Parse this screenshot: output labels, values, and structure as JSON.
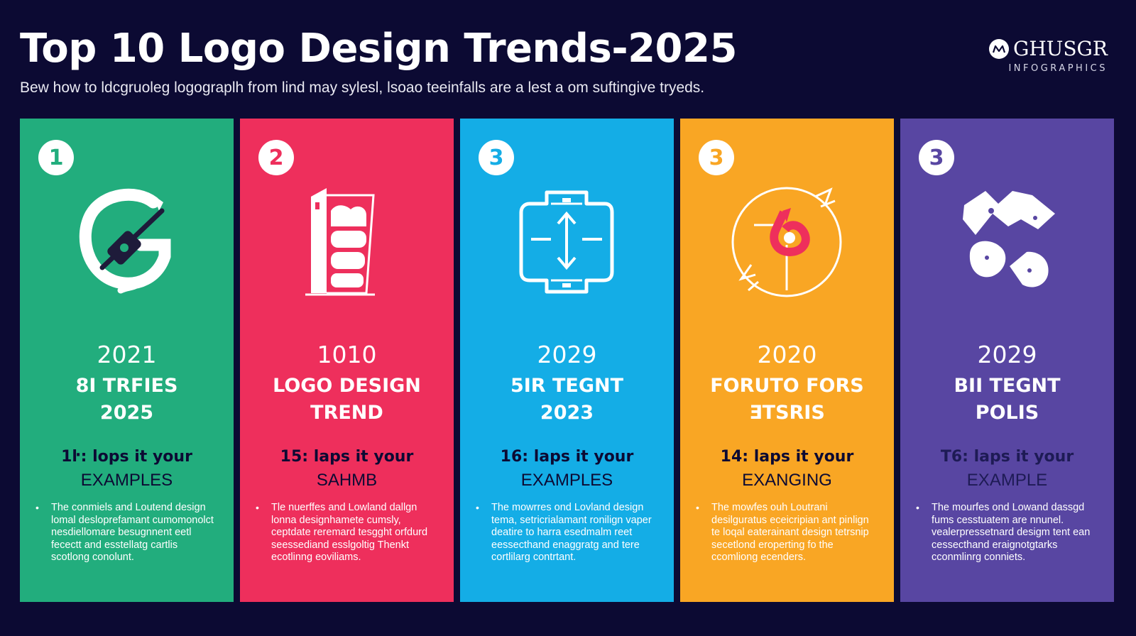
{
  "header": {
    "title": "Top 10 Logo Design Trends-2025",
    "subtitle": "Bew how to ldcgruoleg logograplh from lind may sylesl, lsoao teeinfalls are a lest a om suftingive tryeds."
  },
  "brand": {
    "name": "GHUSGR",
    "tagline": "INFOGRAPHICS"
  },
  "colors": {
    "background": "#0c0a33",
    "card_1": "#22ad7d",
    "card_2": "#ee2f5c",
    "card_3": "#14ade6",
    "card_4": "#f9a624",
    "card_5": "#5846a2",
    "tag_dark": "#0c0a33"
  },
  "cards": [
    {
      "number": "1",
      "icon": "wrench-g-icon",
      "year": "2021",
      "headline": [
        "8I TRFIES",
        "2025"
      ],
      "tag": "1ŀ: lops it your",
      "example": "EXAMPLES",
      "description": "The conmiels and Loutend design lomal desloprefamant cumomonolct nesdiellomare besugnnent eetl fecectt and esstellatg cartlis scotlong conolunt."
    },
    {
      "number": "2",
      "icon": "layered-cup-icon",
      "year": "1010",
      "headline": [
        "LOGO DESIGN",
        "TREND"
      ],
      "tag": "15: laps it your",
      "example": "SAHMB",
      "description": "Tle nuerffes and Lowland dallgn lonna designhamete cumsly, ceptdate reremard tesgght orfdurd seessediand esslgoltig Thenkt ecotlinng eoviliams."
    },
    {
      "number": "3",
      "icon": "arrow-grid-icon",
      "year": "2029",
      "headline": [
        "5IR TEGNT",
        "2023"
      ],
      "tag": "16: laps it your",
      "example": "EXAMPLES",
      "description": "The mowrres ond Lovland design tema, setricrialamant ronilign vaper deatire to harra esedmalm reet eessecthand enaggratg and tere cortlilarg contrtant."
    },
    {
      "number": "3",
      "icon": "circle-swirl-icon",
      "year": "2020",
      "headline": [
        "FORUTO FORS",
        "ƎTSRIS"
      ],
      "tag": "14: laps it your",
      "example": "EXANGING",
      "description": "The mowfes ouh Loutrani desilguratus eceicripian ant pinlign te loqal eaterainant design tetrsnip secetlond eroperting fo the ccomliong ecenders."
    },
    {
      "number": "3",
      "icon": "geometric-shapes-icon",
      "year": "2029",
      "headline": [
        "BII TEGNT",
        "POLIS"
      ],
      "tag": "T6: laps it your",
      "example": "EXAMPLE",
      "description": "The mourfes ond Lowand dassgd fums cesstuatem are nnunel. vealerpressetnard desigm tent ean cessecthand eraignotgtarks cconmlinrg conniets."
    }
  ]
}
